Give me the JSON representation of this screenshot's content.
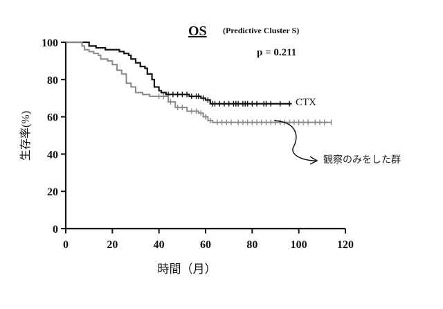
{
  "chart_data": {
    "type": "line",
    "subtype": "kaplan-meier",
    "title": "OS",
    "subtitle": "(Predictive Cluster S)",
    "annotation": "p = 0.211",
    "xlabel": "時間（月）",
    "ylabel": "生存率(%)",
    "xlim": [
      0,
      120
    ],
    "ylim": [
      0,
      100
    ],
    "x_ticks": [
      0,
      20,
      40,
      60,
      80,
      100,
      120
    ],
    "y_ticks": [
      0,
      20,
      40,
      60,
      80,
      100
    ],
    "grid": false,
    "series": [
      {
        "name": "CTX",
        "color": "#111111",
        "steps": [
          [
            0,
            100
          ],
          [
            9,
            100
          ],
          [
            10,
            98
          ],
          [
            13,
            97
          ],
          [
            17,
            96
          ],
          [
            21,
            96
          ],
          [
            23,
            95
          ],
          [
            25,
            94
          ],
          [
            27,
            93
          ],
          [
            28,
            91
          ],
          [
            30,
            89
          ],
          [
            32,
            87
          ],
          [
            34,
            86
          ],
          [
            35,
            83
          ],
          [
            37,
            80
          ],
          [
            38,
            76
          ],
          [
            40,
            74
          ],
          [
            41,
            73
          ],
          [
            43,
            72
          ],
          [
            47,
            72
          ],
          [
            53,
            71
          ],
          [
            58,
            70
          ],
          [
            60,
            69
          ],
          [
            62,
            67
          ],
          [
            97,
            67
          ]
        ],
        "censor_x": [
          44,
          46,
          48,
          50,
          52,
          54,
          56,
          57,
          59,
          61,
          63,
          64,
          66,
          68,
          70,
          72,
          73,
          74,
          76,
          77,
          78,
          80,
          82,
          85,
          86,
          88,
          92,
          96
        ]
      },
      {
        "name": "観察のみをした群",
        "color": "#888888",
        "steps": [
          [
            0,
            100
          ],
          [
            7,
            98
          ],
          [
            8,
            96
          ],
          [
            10,
            95
          ],
          [
            12,
            94
          ],
          [
            14,
            93
          ],
          [
            15,
            91
          ],
          [
            18,
            90
          ],
          [
            20,
            88
          ],
          [
            22,
            85
          ],
          [
            24,
            83
          ],
          [
            26,
            78
          ],
          [
            28,
            76
          ],
          [
            30,
            73
          ],
          [
            33,
            72
          ],
          [
            36,
            71
          ],
          [
            40,
            71
          ],
          [
            44,
            68
          ],
          [
            47,
            65
          ],
          [
            52,
            63
          ],
          [
            57,
            62
          ],
          [
            59,
            60
          ],
          [
            61,
            58
          ],
          [
            63,
            57
          ],
          [
            114,
            57
          ]
        ],
        "censor_x": [
          40,
          42,
          45,
          48,
          50,
          54,
          56,
          58,
          60,
          62,
          65,
          67,
          69,
          71,
          74,
          76,
          78,
          80,
          82,
          84,
          86,
          88,
          90,
          92,
          94,
          96,
          98,
          100,
          102,
          104,
          107,
          109,
          111,
          114
        ]
      }
    ],
    "series_labels": [
      {
        "text": "CTX",
        "series": 0
      },
      {
        "text": "観察のみをした群",
        "series": 1
      }
    ]
  }
}
